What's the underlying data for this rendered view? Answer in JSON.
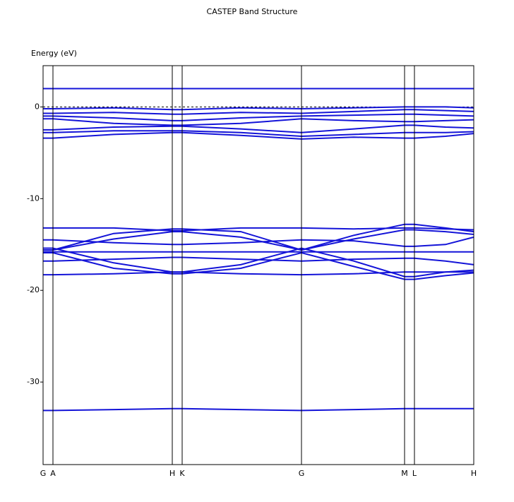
{
  "chart_data": {
    "type": "line",
    "title": "CASTEP Band Structure",
    "y_label": "Energy (eV)",
    "color": "#1414d8",
    "fermi_level": 0,
    "x": [
      0,
      14,
      100,
      183,
      197,
      280,
      366,
      440,
      512,
      526,
      570,
      610
    ],
    "xlim": [
      0,
      610
    ],
    "xticks": [
      {
        "value": 0,
        "label": "G"
      },
      {
        "value": 14,
        "label": "A"
      },
      {
        "value": 183,
        "label": "H"
      },
      {
        "value": 197,
        "label": "K"
      },
      {
        "value": 366,
        "label": "G"
      },
      {
        "value": 512,
        "label": "M"
      },
      {
        "value": 526,
        "label": "L"
      },
      {
        "value": 610,
        "label": "H"
      }
    ],
    "ylim": [
      -39,
      4.5
    ],
    "yticks": [
      0,
      -10,
      -20,
      -30
    ],
    "series": [
      {
        "values": [
          -33.1,
          -33.1,
          -33.0,
          -32.9,
          -32.9,
          -33.0,
          -33.1,
          -33.0,
          -32.9,
          -32.9,
          -32.9,
          -32.9
        ]
      },
      {
        "values": [
          2,
          2,
          2,
          2,
          2,
          2,
          2,
          2,
          2,
          2,
          2,
          2
        ]
      },
      {
        "values": [
          -0.2,
          -0.2,
          -0.1,
          -0.3,
          -0.3,
          -0.1,
          -0.2,
          -0.1,
          0,
          0,
          0,
          -0.1
        ]
      },
      {
        "values": [
          -0.7,
          -0.7,
          -0.6,
          -0.8,
          -0.8,
          -0.6,
          -0.7,
          -0.5,
          -0.3,
          -0.3,
          -0.4,
          -0.5
        ]
      },
      {
        "values": [
          -1.0,
          -1.0,
          -1.2,
          -1.5,
          -1.5,
          -1.2,
          -1.0,
          -0.9,
          -0.8,
          -0.8,
          -0.9,
          -1.0
        ]
      },
      {
        "values": [
          -1.3,
          -1.3,
          -1.8,
          -2.0,
          -2.0,
          -1.8,
          -1.3,
          -1.5,
          -1.6,
          -1.6,
          -1.5,
          -1.4
        ]
      },
      {
        "values": [
          -2.5,
          -2.5,
          -2.2,
          -2.1,
          -2.1,
          -2.4,
          -2.8,
          -2.4,
          -2.0,
          -2.0,
          -2.2,
          -2.3
        ]
      },
      {
        "values": [
          -2.8,
          -2.8,
          -2.6,
          -2.6,
          -2.6,
          -2.8,
          -3.2,
          -3.0,
          -2.8,
          -2.8,
          -2.8,
          -2.7
        ]
      },
      {
        "values": [
          -3.4,
          -3.4,
          -3.0,
          -2.8,
          -2.8,
          -3.1,
          -3.5,
          -3.3,
          -3.4,
          -3.4,
          -3.2,
          -2.9
        ]
      },
      {
        "values": [
          -15.6,
          -15.6,
          -13.8,
          -13.3,
          -13.3,
          -13.6,
          -15.6,
          -14.0,
          -12.8,
          -12.8,
          -13.2,
          -13.6
        ]
      },
      {
        "values": [
          -15.6,
          -15.6,
          -14.4,
          -13.6,
          -13.6,
          -14.2,
          -15.6,
          -14.4,
          -13.4,
          -13.4,
          -13.6,
          -13.9
        ]
      },
      {
        "values": [
          -13.2,
          -13.2,
          -13.2,
          -13.5,
          -13.5,
          -13.2,
          -13.2,
          -13.3,
          -13.2,
          -13.2,
          -13.3,
          -13.4
        ]
      },
      {
        "values": [
          -15.8,
          -15.8,
          -15.8,
          -15.8,
          -15.8,
          -15.8,
          -15.8,
          -15.8,
          -15.8,
          -15.8,
          -15.8,
          -15.8
        ]
      },
      {
        "values": [
          -15.4,
          -15.4,
          -17.0,
          -18.0,
          -18.0,
          -17.2,
          -15.4,
          -16.8,
          -18.5,
          -18.5,
          -18.0,
          -17.8
        ]
      },
      {
        "values": [
          -15.9,
          -15.9,
          -17.6,
          -18.2,
          -18.2,
          -17.6,
          -15.9,
          -17.4,
          -18.8,
          -18.8,
          -18.4,
          -18.1
        ]
      },
      {
        "values": [
          -18.3,
          -18.3,
          -18.2,
          -18.0,
          -18.0,
          -18.2,
          -18.3,
          -18.2,
          -18.0,
          -18.0,
          -18.0,
          -18.0
        ]
      },
      {
        "values": [
          -14.5,
          -14.5,
          -14.8,
          -15.0,
          -15.0,
          -14.8,
          -14.5,
          -14.6,
          -15.2,
          -15.2,
          -15.0,
          -14.2
        ]
      },
      {
        "values": [
          -16.8,
          -16.8,
          -16.6,
          -16.4,
          -16.4,
          -16.6,
          -16.8,
          -16.6,
          -16.5,
          -16.5,
          -16.8,
          -17.2
        ]
      }
    ]
  }
}
